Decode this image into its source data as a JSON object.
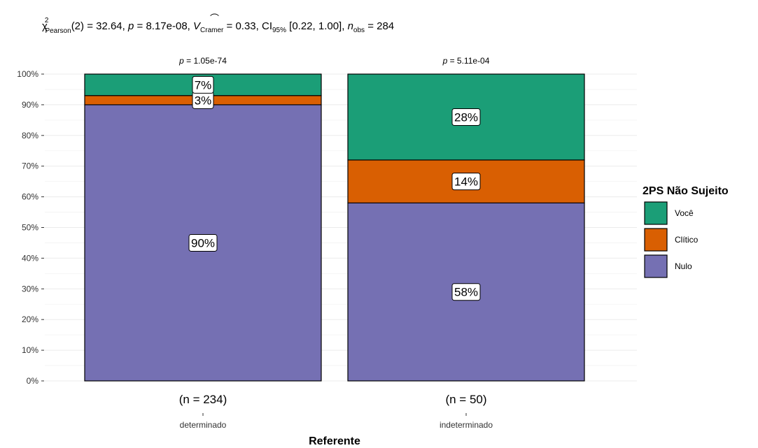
{
  "chart_data": {
    "type": "bar",
    "stacked": true,
    "subtitle": {
      "chi_symbol": "χ",
      "chi_sup": "2",
      "chi_sub": "Pearson",
      "part1": "(2) = 32.64, ",
      "p_sym": "p",
      "part2": " = 8.17e-08, ",
      "v_sym": "V",
      "v_sub": "Cramer",
      "part3": " = 0.33, CI",
      "ci_sub": "95%",
      "part4": " [0.22, 1.00], ",
      "n_sym": "n",
      "n_sub": "obs",
      "part5": " = 284"
    },
    "xlabel": "Referente",
    "ylabel": "",
    "ylim": [
      0,
      100
    ],
    "y_ticks": [
      "0%",
      "10%",
      "20%",
      "30%",
      "40%",
      "50%",
      "60%",
      "70%",
      "80%",
      "90%",
      "100%"
    ],
    "categories": [
      "determinado",
      "indeterminado"
    ],
    "counts": [
      "(n = 234)",
      "(n = 50)"
    ],
    "pvalues": [
      "p = 1.05e-74",
      "p = 5.11e-04"
    ],
    "legend": {
      "title": "2PS Não Sujeito",
      "position": "right",
      "entries": [
        "Você",
        "Clítico",
        "Nulo"
      ]
    },
    "series": [
      {
        "name": "Nulo",
        "color": "#7570B3",
        "values": [
          90,
          58
        ],
        "labels": [
          "90%",
          "58%"
        ]
      },
      {
        "name": "Clítico",
        "color": "#D95F02",
        "values": [
          3,
          14
        ],
        "labels": [
          "3%",
          "14%"
        ]
      },
      {
        "name": "Você",
        "color": "#1B9E77",
        "values": [
          7,
          28
        ],
        "labels": [
          "7%",
          "28%"
        ]
      }
    ],
    "grid": true
  }
}
